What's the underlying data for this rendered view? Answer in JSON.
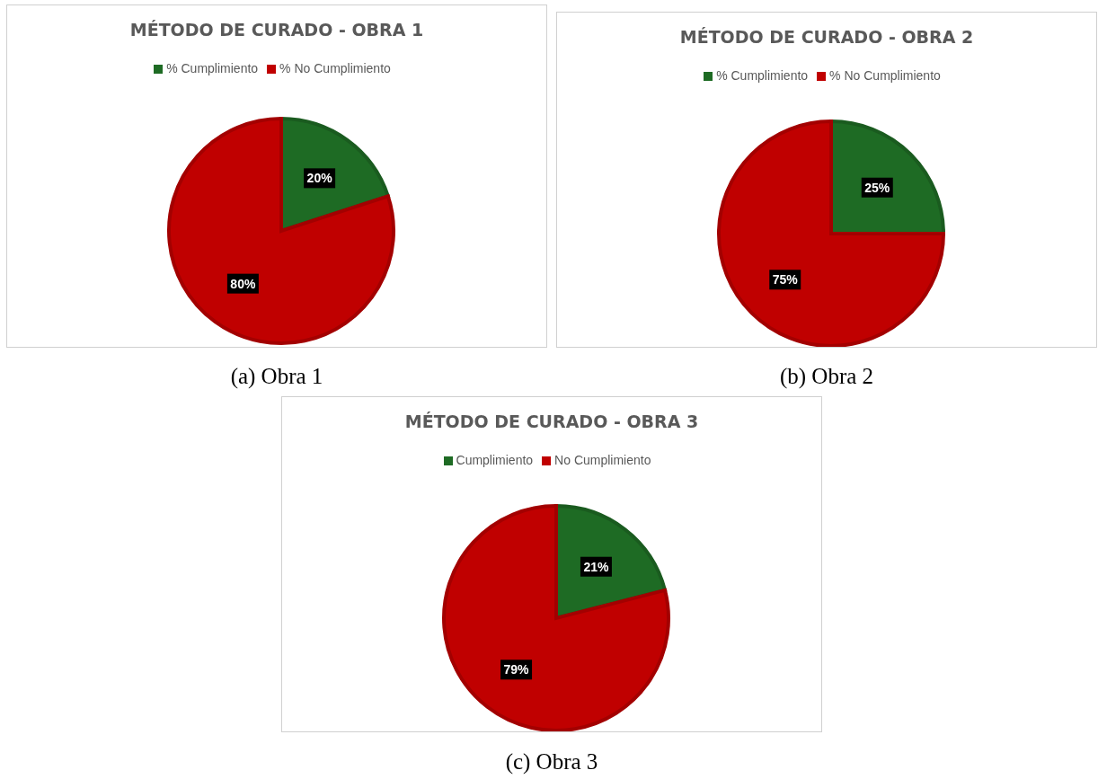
{
  "chart_data": [
    {
      "type": "pie",
      "title": "MÉTODO DE CURADO - OBRA 1",
      "categories": [
        "% Cumplimiento",
        "% No Cumplimiento"
      ],
      "values": [
        20,
        80
      ],
      "colors": [
        "#1e6b24",
        "#c00000"
      ],
      "value_labels": [
        "20%",
        "80%"
      ],
      "legend": "top",
      "annotations": [
        "(a) Obra 1"
      ]
    },
    {
      "type": "pie",
      "title": "MÉTODO DE CURADO - OBRA 2",
      "categories": [
        "% Cumplimiento",
        "% No Cumplimiento"
      ],
      "values": [
        25,
        75
      ],
      "colors": [
        "#1e6b24",
        "#c00000"
      ],
      "value_labels": [
        "25%",
        "75%"
      ],
      "legend": "top",
      "annotations": [
        "(b) Obra 2"
      ]
    },
    {
      "type": "pie",
      "title": "MÉTODO DE CURADO - OBRA 3",
      "categories": [
        "Cumplimiento",
        "No Cumplimiento"
      ],
      "values": [
        21,
        79
      ],
      "colors": [
        "#1e6b24",
        "#c00000"
      ],
      "value_labels": [
        "21%",
        "79%"
      ],
      "legend": "top",
      "annotations": [
        "(c) Obra 3"
      ]
    }
  ]
}
